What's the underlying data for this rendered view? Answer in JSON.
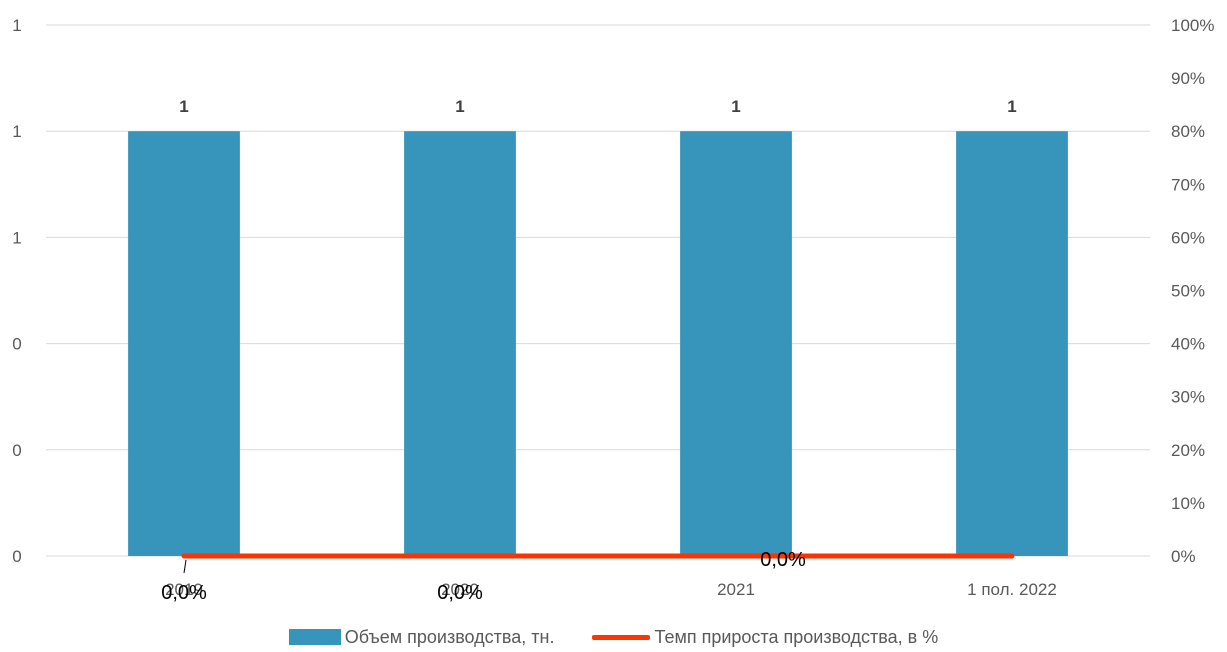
{
  "chart_data": {
    "type": "bar",
    "categories": [
      "2019",
      "2020",
      "2021",
      "1 пол. 2022"
    ],
    "series": [
      {
        "name": "Объем производства, тн.",
        "type": "bar",
        "axis": "left",
        "values": [
          1,
          1,
          1,
          1
        ],
        "data_labels": [
          "1",
          "1",
          "1",
          "1"
        ],
        "color": "#3795bb"
      },
      {
        "name": "Темп прироста производства, в %",
        "type": "line",
        "axis": "right",
        "values": [
          0,
          0,
          0,
          0
        ],
        "data_labels": [
          "0,0%",
          "0,0%",
          "0,0%",
          ""
        ],
        "color": "#ff3300"
      }
    ],
    "left_axis": {
      "ylim": [
        0,
        1.25
      ],
      "ticks": [
        0,
        0.25,
        0.5,
        0.75,
        1.0,
        1.25
      ],
      "tick_labels": [
        "0",
        "0",
        "0",
        "1",
        "1",
        "1"
      ]
    },
    "right_axis": {
      "ylim": [
        0,
        1
      ],
      "ticks": [
        0,
        0.1,
        0.2,
        0.3,
        0.4,
        0.5,
        0.6,
        0.7,
        0.8,
        0.9,
        1.0
      ],
      "tick_labels": [
        "0%",
        "10%",
        "20%",
        "30%",
        "40%",
        "50%",
        "60%",
        "70%",
        "80%",
        "90%",
        "100%"
      ]
    },
    "grid": true,
    "legend_position": "bottom",
    "colors": {
      "grid": "#d9d9d9",
      "text": "#595959",
      "label": "#404040"
    }
  }
}
